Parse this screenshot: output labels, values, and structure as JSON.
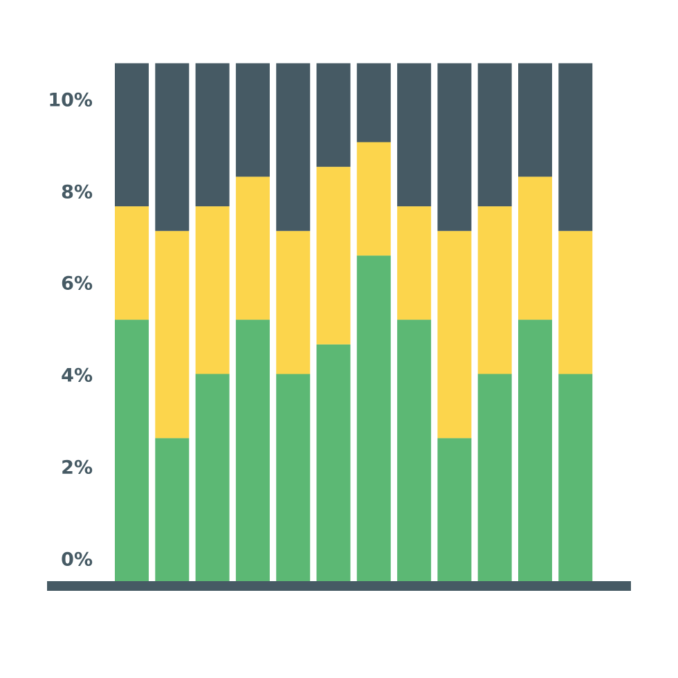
{
  "chart_data": {
    "type": "bar",
    "stacked": true,
    "y_tick_labels": [
      "0%",
      "2%",
      "4%",
      "6%",
      "8%",
      "10%"
    ],
    "y_ticks": [
      0,
      2,
      4,
      6,
      8,
      10
    ],
    "ylim": [
      0,
      10
    ],
    "grid": false,
    "legend": "none",
    "series": [
      {
        "color": "#5cb874",
        "values": [
          5.3,
          2.9,
          4.2,
          5.3,
          4.2,
          4.8,
          6.6,
          5.3,
          2.9,
          4.2,
          5.3,
          4.2
        ]
      },
      {
        "color": "#fcd54c",
        "values": [
          2.3,
          4.2,
          3.4,
          2.9,
          2.9,
          3.6,
          2.3,
          2.3,
          4.2,
          3.4,
          2.9,
          2.9
        ]
      },
      {
        "color": "#465a64",
        "values": [
          2.9,
          3.4,
          2.9,
          2.3,
          3.4,
          2.1,
          1.6,
          2.9,
          3.4,
          2.9,
          2.3,
          3.4
        ]
      }
    ]
  },
  "colors": {
    "axis": "#465a64",
    "tick_label": "#465a64"
  }
}
